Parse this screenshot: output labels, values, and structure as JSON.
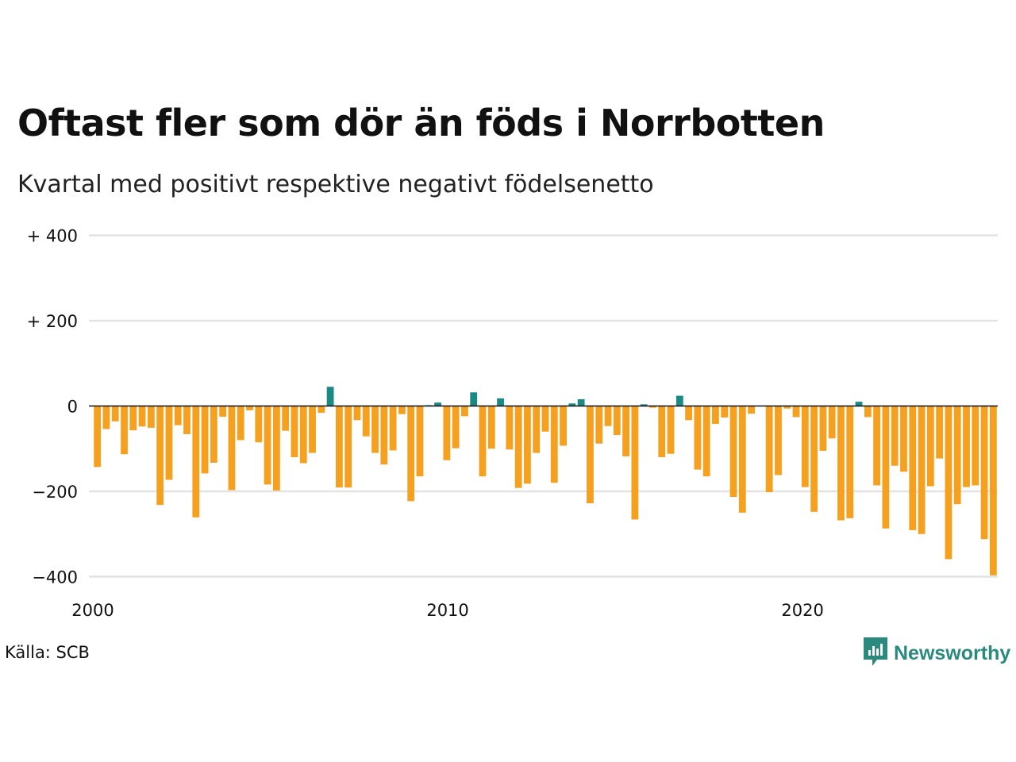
{
  "title": "Oftast fler som dör än föds i Norrbotten",
  "subtitle": "Kvartal med positivt respektive negativt födelsenetto",
  "source": "Källa: SCB",
  "logo": {
    "text": "Newsworthy",
    "icon": "newsworthy-chart-bubble-icon"
  },
  "colors": {
    "positive": "#1a8a84",
    "negative": "#f5a01e",
    "logo": "#2a8a7e",
    "grid": "#e3e3e3",
    "zero": "#111111"
  },
  "chart_data": {
    "type": "bar",
    "grid": true,
    "ylim": [
      -400,
      400
    ],
    "yticks": [
      {
        "value": 400,
        "label": "+ 400"
      },
      {
        "value": 200,
        "label": "+ 200"
      },
      {
        "value": 0,
        "label": "0"
      },
      {
        "value": -200,
        "label": "−200"
      },
      {
        "value": -400,
        "label": "−400"
      }
    ],
    "xlim": [
      2000.0,
      2025.5
    ],
    "xticks": [
      {
        "value": 2000,
        "label": "2000"
      },
      {
        "value": 2010,
        "label": "2010"
      },
      {
        "value": 2020,
        "label": "2020"
      }
    ],
    "x_start_quarter": "2000 Q1",
    "values": [
      -143,
      -54,
      -36,
      -113,
      -57,
      -48,
      -51,
      -232,
      -173,
      -45,
      -66,
      -261,
      -158,
      -133,
      -25,
      -197,
      -80,
      -10,
      -85,
      -184,
      -198,
      -58,
      -120,
      -134,
      -110,
      -16,
      45,
      -191,
      -191,
      -33,
      -71,
      -110,
      -137,
      -104,
      -19,
      -223,
      -165,
      2,
      8,
      -127,
      -99,
      -24,
      32,
      -165,
      -100,
      18,
      -102,
      -192,
      -182,
      -110,
      -60,
      -180,
      -93,
      6,
      16,
      -228,
      -88,
      -47,
      -68,
      -118,
      -266,
      4,
      -4,
      -120,
      -112,
      24,
      -33,
      -149,
      -165,
      -42,
      -27,
      -213,
      -250,
      -18,
      0,
      -202,
      -162,
      -6,
      -26,
      -190,
      -248,
      -105,
      -76,
      -268,
      -263,
      10,
      -26,
      -186,
      -287,
      -140,
      -154,
      -291,
      -300,
      -188,
      -123,
      -359,
      -230,
      -190,
      -186,
      -312,
      -397
    ]
  }
}
